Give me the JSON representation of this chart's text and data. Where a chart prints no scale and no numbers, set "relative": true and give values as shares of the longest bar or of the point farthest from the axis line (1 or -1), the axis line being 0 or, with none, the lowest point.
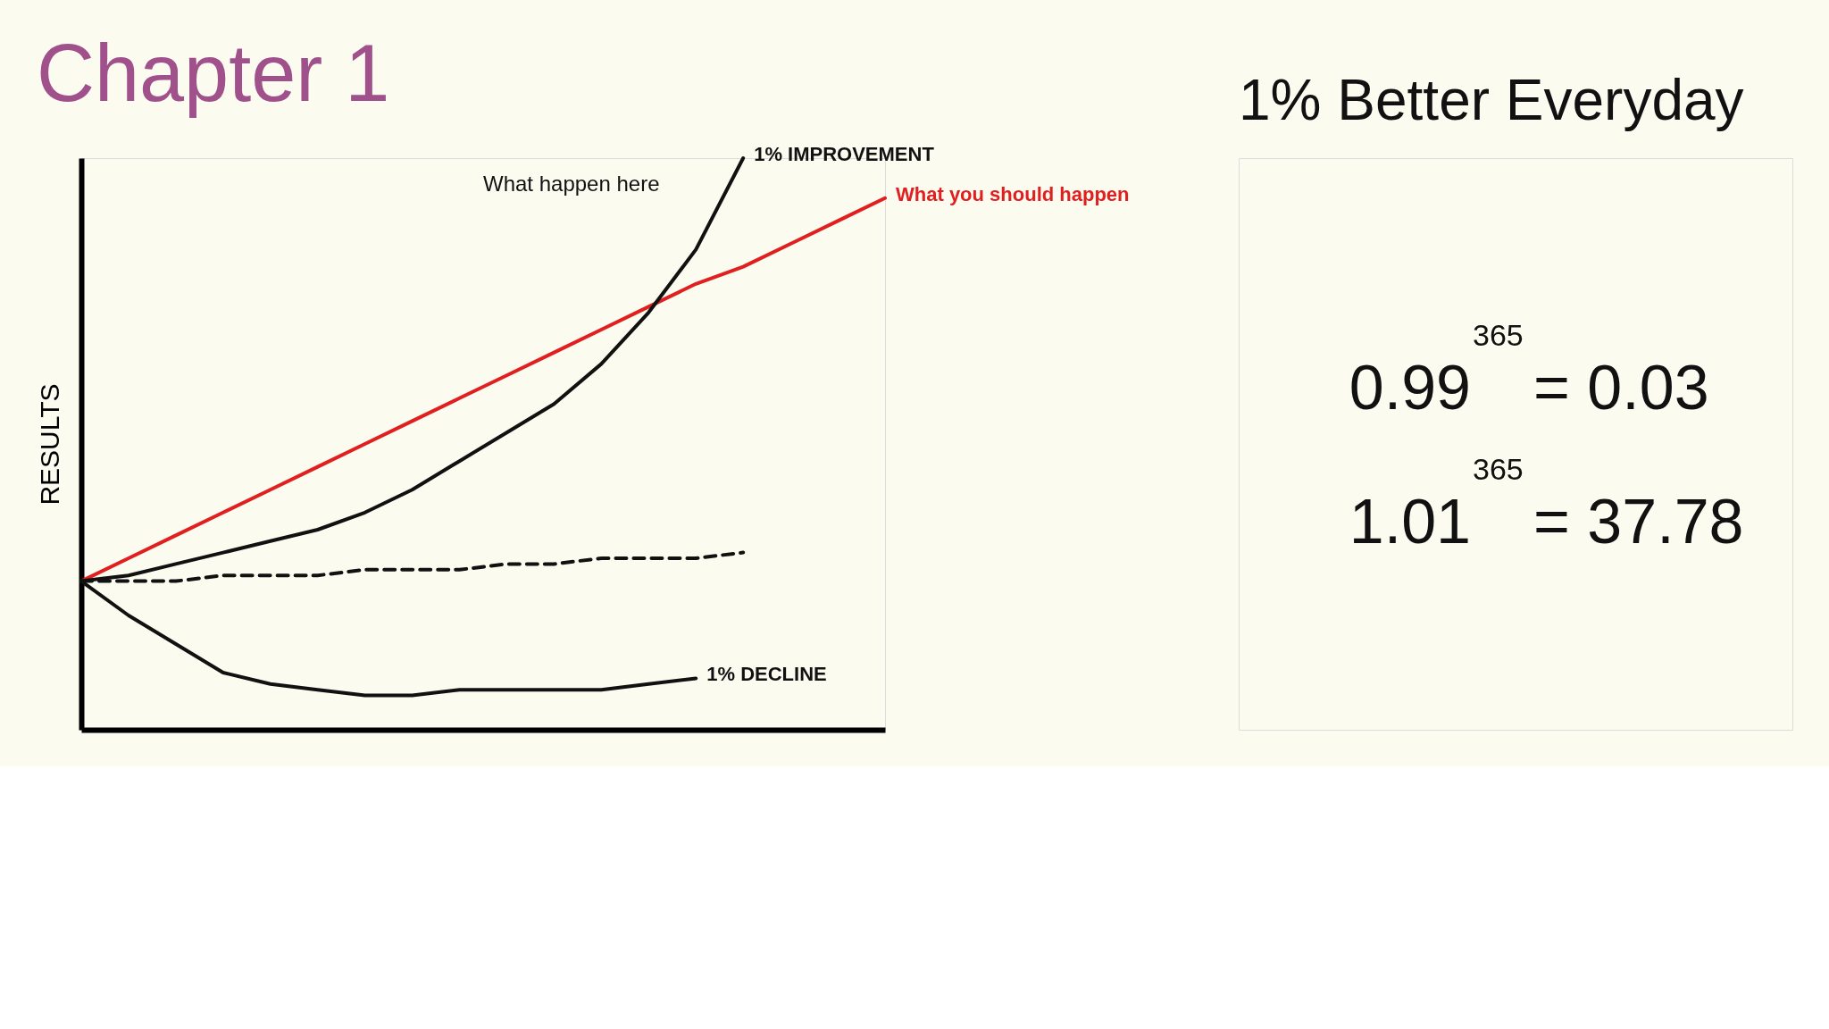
{
  "chart_data": [
    {
      "type": "line",
      "title": "Chapter 1",
      "ylabel": "RESULTS",
      "relative": true,
      "grid": false,
      "tick_labels": false,
      "categories": [
        null,
        null,
        null,
        null,
        null,
        null,
        null,
        null,
        null,
        null,
        null,
        null,
        null,
        null,
        null,
        null,
        null,
        null
      ],
      "annotations": [
        "What happen here"
      ],
      "series": [
        {
          "name": "What you should happen",
          "color": "#e02020",
          "line_style": "solid",
          "values": [
            0.26,
            0.3,
            0.34,
            0.38,
            0.42,
            0.46,
            0.5,
            0.54,
            0.58,
            0.62,
            0.66,
            0.7,
            0.74,
            0.78,
            0.81,
            0.85,
            0.89,
            0.93
          ]
        },
        {
          "name": "1% IMPROVEMENT",
          "color": "#111111",
          "line_style": "solid",
          "values": [
            0.26,
            0.27,
            0.29,
            0.31,
            0.33,
            0.35,
            0.38,
            0.42,
            0.47,
            0.52,
            0.57,
            0.64,
            0.73,
            0.84,
            1.0,
            null,
            null,
            null
          ]
        },
        {
          "color": "#111111",
          "line_style": "dashed",
          "values": [
            0.26,
            0.26,
            0.26,
            0.27,
            0.27,
            0.27,
            0.28,
            0.28,
            0.28,
            0.29,
            0.29,
            0.3,
            0.3,
            0.3,
            0.31,
            null,
            null,
            null
          ]
        },
        {
          "name": "1% DECLINE",
          "color": "#111111",
          "line_style": "solid",
          "values": [
            0.26,
            0.2,
            0.15,
            0.1,
            0.08,
            0.07,
            0.06,
            0.06,
            0.07,
            0.07,
            0.07,
            0.07,
            0.08,
            0.09,
            null,
            null,
            null,
            null
          ]
        }
      ]
    },
    {
      "type": "other",
      "title": "1% Better Everyday",
      "annotations": [
        "0.99$^{365}$ = 0.03",
        "1.01$^{365}$ = 37.78"
      ]
    }
  ]
}
